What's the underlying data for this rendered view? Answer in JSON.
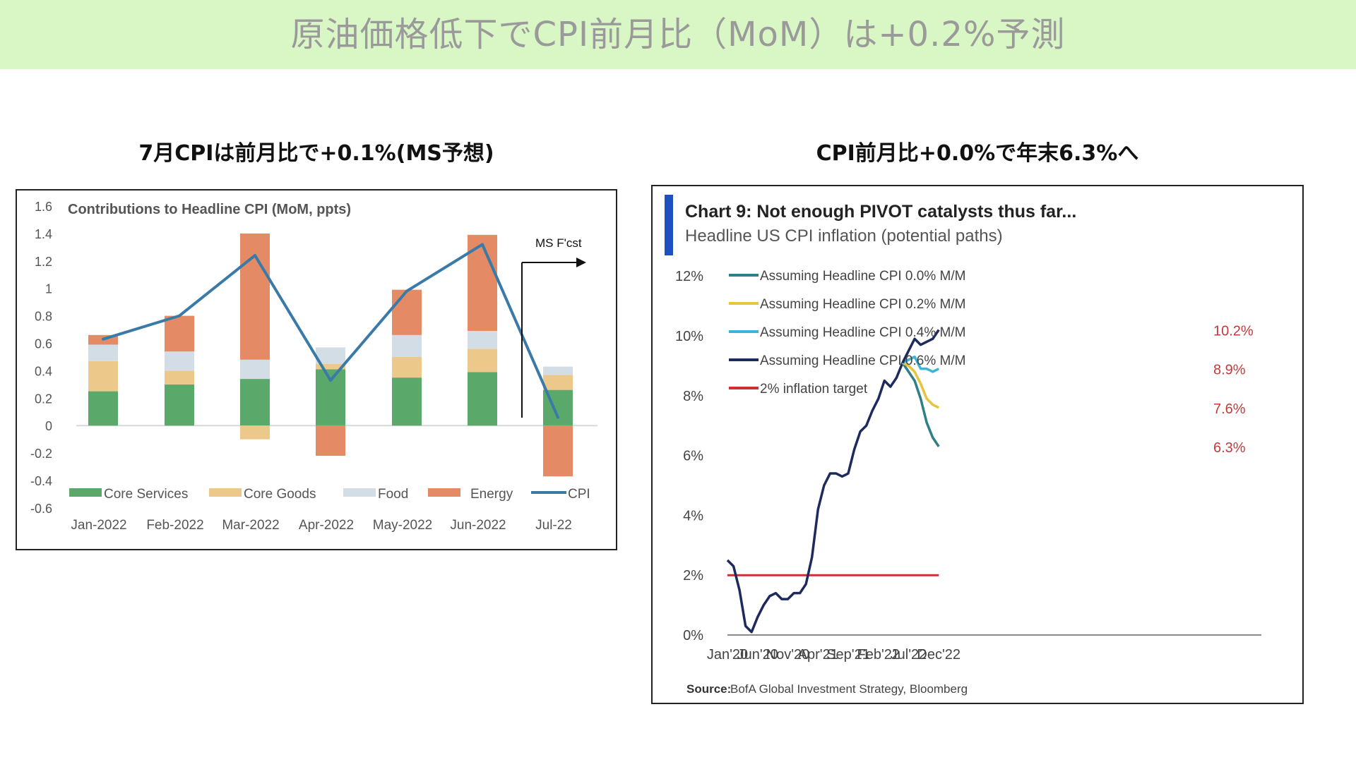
{
  "page": {
    "banner_title": "原油価格低下でCPI前月比（MoM）は+0.2%予測",
    "left_subtitle": "7月CPIは前月比で+0.1%(MS予想)",
    "right_subtitle": "CPI前月比+0.0%で年末6.3%へ"
  },
  "colors": {
    "banner_bg": "#d9f7c5",
    "core_services": "#5aa96a",
    "core_goods": "#ecc98a",
    "food": "#d3dde6",
    "energy": "#e48b66",
    "cpi_line": "#3a7aa8",
    "path_00": "#2e7f86",
    "path_02": "#e8c43c",
    "path_04": "#3eb4d4",
    "path_06": "#1d2a5e",
    "target": "#d12e2e",
    "accent_bar": "#1f4fc0",
    "end_label": "#c43a3a"
  },
  "chart_data": [
    {
      "type": "bar",
      "stacked": true,
      "title": "Contributions  to Headline CPI (MoM, ppts)",
      "annotation": "MS F'cst",
      "categories": [
        "Jan-2022",
        "Feb-2022",
        "Mar-2022",
        "Apr-2022",
        "May-2022",
        "Jun-2022",
        "Jul-22"
      ],
      "series": [
        {
          "name": "Core Services",
          "color": "#5aa96a",
          "values": [
            0.25,
            0.3,
            0.34,
            0.41,
            0.35,
            0.39,
            0.26
          ]
        },
        {
          "name": "Core Goods",
          "color": "#ecc98a",
          "values": [
            0.22,
            0.1,
            -0.1,
            0.04,
            0.15,
            0.17,
            0.11
          ]
        },
        {
          "name": "Food",
          "color": "#d3dde6",
          "values": [
            0.12,
            0.14,
            0.14,
            0.12,
            0.16,
            0.13,
            0.06
          ]
        },
        {
          "name": "Energy",
          "color": "#e48b66",
          "values": [
            0.07,
            0.26,
            0.92,
            -0.22,
            0.33,
            0.7,
            -0.37
          ]
        }
      ],
      "line": {
        "name": "CPI",
        "color": "#3a7aa8",
        "values": [
          0.63,
          0.8,
          1.24,
          0.33,
          0.98,
          1.32,
          0.06
        ]
      },
      "yticks": [
        "1.6",
        "1.4",
        "1.2",
        "1",
        "0.8",
        "0.6",
        "0.4",
        "0.2",
        "0",
        "-0.2",
        "-0.4",
        "-0.6"
      ],
      "ylim": [
        -0.6,
        1.6
      ]
    },
    {
      "type": "line",
      "title": "Chart 9: Not enough PIVOT catalysts thus far...",
      "subtitle": "Headline US CPI inflation (potential paths)",
      "source_label": "Source:",
      "source_text": "BofA Global Investment Strategy, Bloomberg",
      "x_ticks": [
        "Jan'20",
        "Jun'20",
        "Nov'20",
        "Apr'21",
        "Sep'21",
        "Feb'22",
        "Jul'22",
        "Dec'22"
      ],
      "y_ticks": [
        "12%",
        "10%",
        "8%",
        "6%",
        "4%",
        "2%",
        "0%"
      ],
      "ylim": [
        0,
        12
      ],
      "history": {
        "x_start": "Jan'20",
        "values": [
          2.5,
          2.3,
          1.5,
          0.3,
          0.1,
          0.6,
          1.0,
          1.3,
          1.4,
          1.2,
          1.2,
          1.4,
          1.4,
          1.7,
          2.6,
          4.2,
          5.0,
          5.4,
          5.4,
          5.3,
          5.4,
          6.2,
          6.8,
          7.0,
          7.5,
          7.9,
          8.5,
          8.3,
          8.6,
          9.1
        ]
      },
      "paths": [
        {
          "name": "Assuming Headline CPI 0.0% M/M",
          "color": "#2e7f86",
          "end_label": "6.3%",
          "values": [
            9.1,
            8.8,
            8.5,
            7.9,
            7.1,
            6.6,
            6.3
          ]
        },
        {
          "name": "Assuming Headline CPI 0.2% M/M",
          "color": "#e8c43c",
          "end_label": "7.6%",
          "values": [
            9.1,
            9.0,
            8.8,
            8.4,
            7.9,
            7.7,
            7.6
          ]
        },
        {
          "name": "Assuming Headline CPI 0.4% M/M",
          "color": "#3eb4d4",
          "end_label": "8.9%",
          "values": [
            9.1,
            9.2,
            9.3,
            8.9,
            8.9,
            8.8,
            8.9
          ]
        },
        {
          "name": "Assuming Headline CPI 0.6% M/M",
          "color": "#1d2a5e",
          "end_label": "10.2%",
          "values": [
            9.1,
            9.5,
            9.9,
            9.7,
            9.8,
            9.9,
            10.2
          ]
        }
      ],
      "target": {
        "name": "2% inflation target",
        "color": "#d12e2e",
        "value": 2
      }
    }
  ]
}
